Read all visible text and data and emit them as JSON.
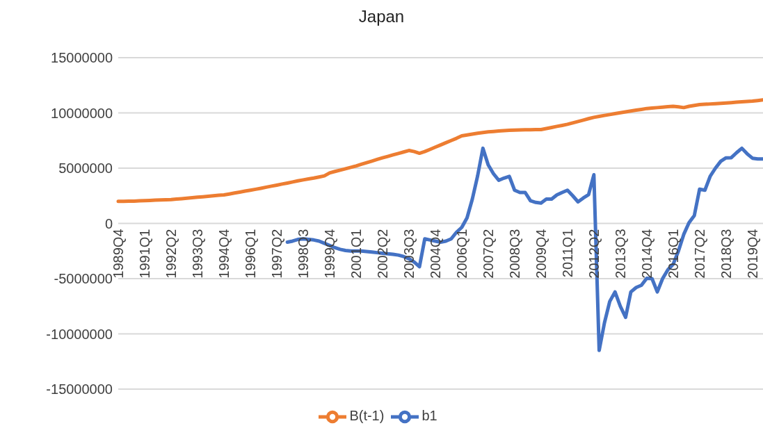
{
  "chart_data": {
    "type": "line",
    "title": "Japan",
    "categories": [
      "1989Q4",
      null,
      null,
      null,
      null,
      "1991Q1",
      null,
      null,
      null,
      null,
      "1992Q2",
      null,
      null,
      null,
      null,
      "1993Q3",
      null,
      null,
      null,
      null,
      "1994Q4",
      null,
      null,
      null,
      null,
      "1996Q1",
      null,
      null,
      null,
      null,
      "1997Q2",
      null,
      null,
      null,
      null,
      "1998Q3",
      null,
      null,
      null,
      null,
      "1999Q4",
      null,
      null,
      null,
      null,
      "2001Q1",
      null,
      null,
      null,
      null,
      "2002Q2",
      null,
      null,
      null,
      null,
      "2003Q3",
      null,
      null,
      null,
      null,
      "2004Q4",
      null,
      null,
      null,
      null,
      "2006Q1",
      null,
      null,
      null,
      null,
      "2007Q2",
      null,
      null,
      null,
      null,
      "2008Q3",
      null,
      null,
      null,
      null,
      "2009Q4",
      null,
      null,
      null,
      null,
      "2011Q1",
      null,
      null,
      null,
      null,
      "2012Q2",
      null,
      null,
      null,
      null,
      "2013Q3",
      null,
      null,
      null,
      null,
      "2014Q4",
      null,
      null,
      null,
      null,
      "2016Q1",
      null,
      null,
      null,
      null,
      "2017Q2",
      null,
      null,
      null,
      null,
      "2018Q3",
      null,
      null,
      null,
      null,
      "2019Q4",
      null,
      null
    ],
    "series": [
      {
        "name": "B(t-1)",
        "color": "#ed7d31",
        "values": [
          2000000,
          2000000,
          2010000,
          2020000,
          2040000,
          2060000,
          2080000,
          2100000,
          2120000,
          2140000,
          2160000,
          2200000,
          2240000,
          2280000,
          2320000,
          2370000,
          2410000,
          2450000,
          2500000,
          2540000,
          2580000,
          2660000,
          2750000,
          2830000,
          2920000,
          3000000,
          3090000,
          3180000,
          3280000,
          3370000,
          3460000,
          3560000,
          3650000,
          3750000,
          3850000,
          3940000,
          4020000,
          4100000,
          4200000,
          4300000,
          4570000,
          4700000,
          4820000,
          4950000,
          5070000,
          5200000,
          5350000,
          5500000,
          5640000,
          5790000,
          5930000,
          6060000,
          6200000,
          6330000,
          6460000,
          6600000,
          6500000,
          6350000,
          6500000,
          6700000,
          6900000,
          7100000,
          7300000,
          7500000,
          7700000,
          7920000,
          8000000,
          8080000,
          8160000,
          8220000,
          8280000,
          8320000,
          8360000,
          8400000,
          8420000,
          8450000,
          8460000,
          8470000,
          8480000,
          8490000,
          8490000,
          8580000,
          8680000,
          8780000,
          8870000,
          8970000,
          9100000,
          9220000,
          9350000,
          9480000,
          9600000,
          9680000,
          9770000,
          9850000,
          9940000,
          10020000,
          10100000,
          10170000,
          10250000,
          10320000,
          10400000,
          10440000,
          10480000,
          10520000,
          10560000,
          10600000,
          10550000,
          10480000,
          10600000,
          10680000,
          10750000,
          10780000,
          10810000,
          10840000,
          10870000,
          10900000,
          10930000,
          10970000,
          11000000,
          11040000,
          11070000,
          11120000,
          11180000
        ]
      },
      {
        "name": "b1",
        "color": "#4472c4",
        "values": [
          null,
          null,
          null,
          null,
          null,
          null,
          null,
          null,
          null,
          null,
          null,
          null,
          null,
          null,
          null,
          null,
          null,
          null,
          null,
          null,
          null,
          null,
          null,
          null,
          null,
          null,
          null,
          null,
          null,
          null,
          null,
          null,
          -1700000,
          -1600000,
          -1450000,
          -1400000,
          -1450000,
          -1500000,
          -1600000,
          -1800000,
          -2000000,
          -2200000,
          -2350000,
          -2450000,
          -2500000,
          -2500000,
          -2500000,
          -2550000,
          -2600000,
          -2650000,
          -2700000,
          -2750000,
          -2800000,
          -2870000,
          -3000000,
          -3200000,
          -3500000,
          -3920000,
          -1400000,
          -1500000,
          -1600000,
          -1700000,
          -1600000,
          -1400000,
          -800000,
          -360000,
          500000,
          2200000,
          4300000,
          6800000,
          5300000,
          4500000,
          3900000,
          4100000,
          4260000,
          3000000,
          2800000,
          2800000,
          2050000,
          1900000,
          1840000,
          2200000,
          2200000,
          2580000,
          2800000,
          3000000,
          2500000,
          1950000,
          2300000,
          2600000,
          4400000,
          -11500000,
          -9000000,
          -7070000,
          -6200000,
          -7500000,
          -8500000,
          -6200000,
          -5800000,
          -5600000,
          -4970000,
          -5000000,
          -6200000,
          -5000000,
          -4200000,
          -3700000,
          -2500000,
          -1000000,
          60000,
          700000,
          3100000,
          3000000,
          4260000,
          5000000,
          5620000,
          5930000,
          5950000,
          6400000,
          6800000,
          6300000,
          5900000,
          5830000,
          5830000
        ]
      }
    ],
    "ylim": [
      -15000000,
      15000000
    ],
    "yticks": [
      -15000000,
      -10000000,
      -5000000,
      0,
      5000000,
      10000000,
      15000000
    ],
    "grid": "y",
    "legend": "bottom"
  }
}
